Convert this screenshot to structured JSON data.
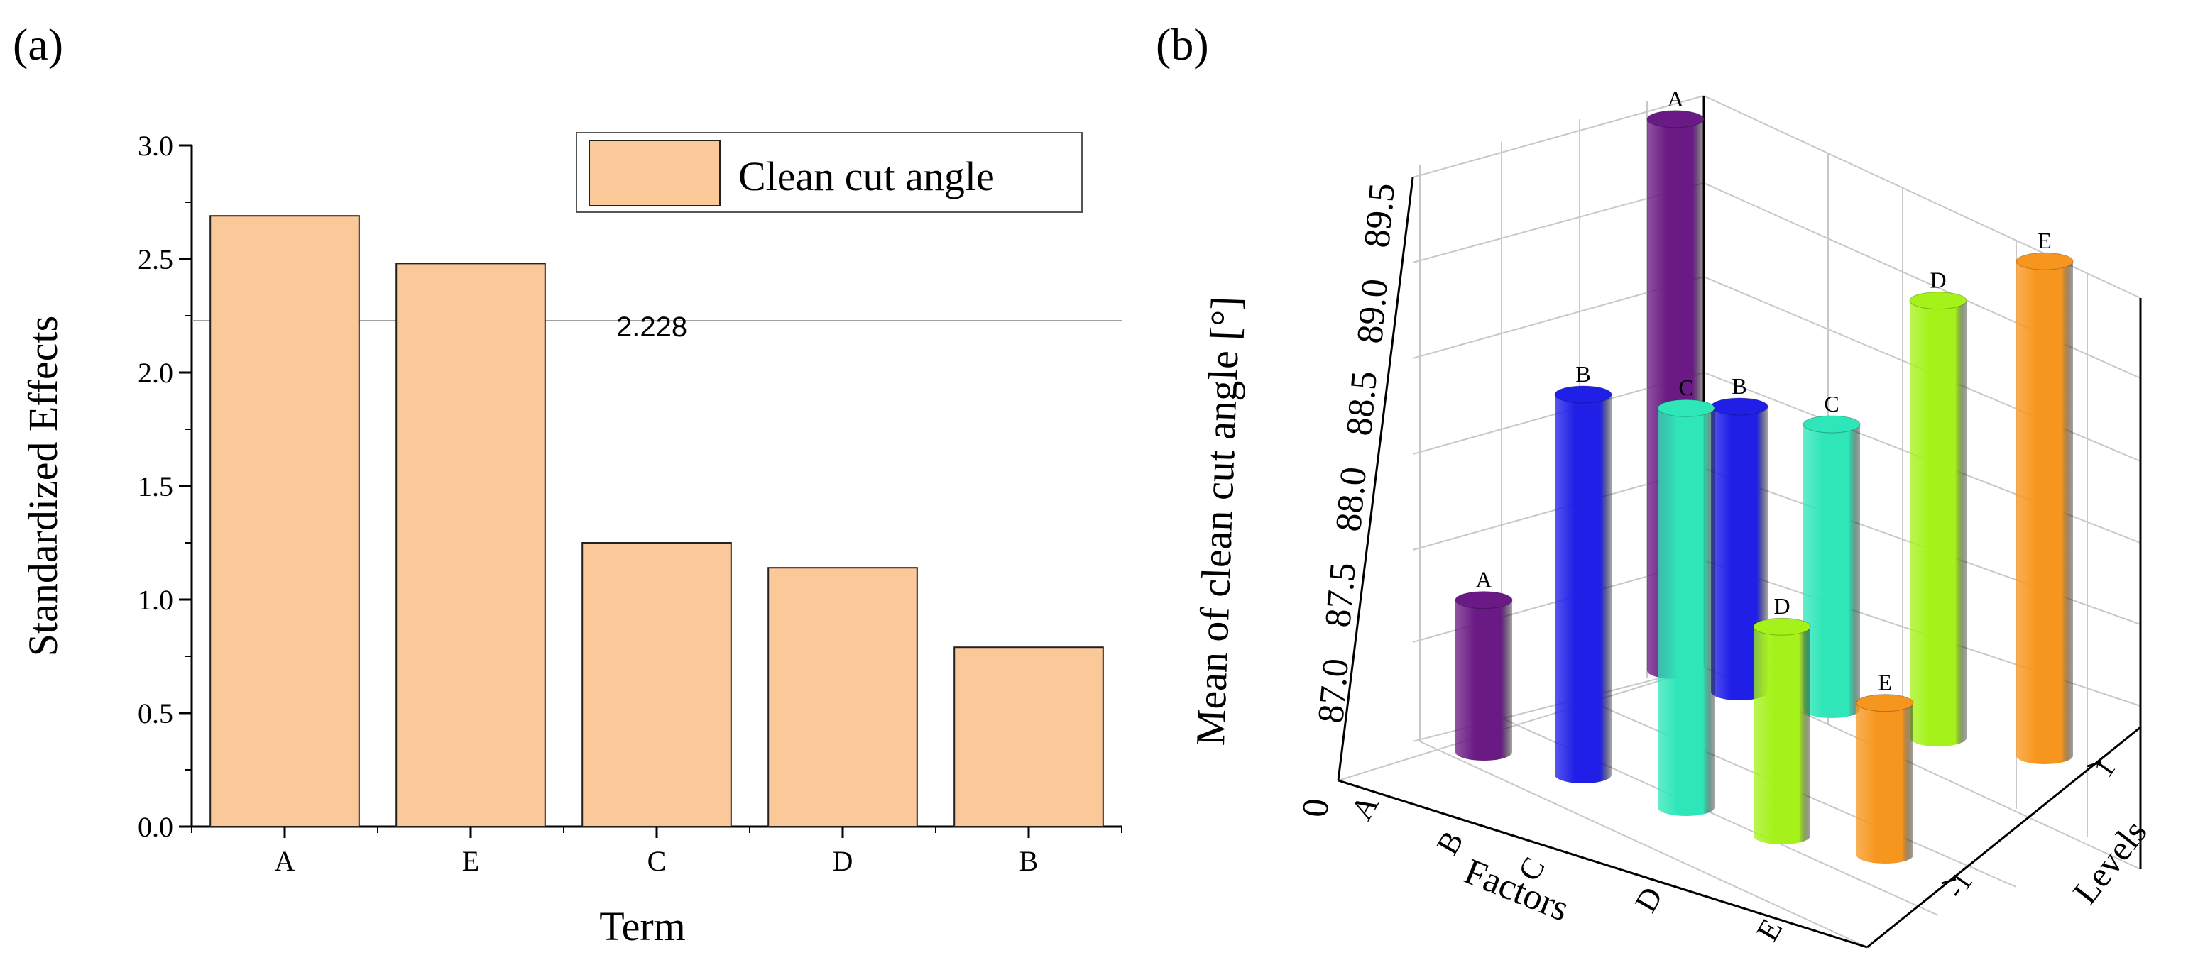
{
  "chart_data": [
    {
      "panel_label": "(a)",
      "type": "bar",
      "xlabel": "Term",
      "ylabel": "Standardized Effects",
      "ylim": [
        0,
        3.0
      ],
      "yticks": [
        "0.0",
        "0.5",
        "1.0",
        "1.5",
        "2.0",
        "2.5",
        "3.0"
      ],
      "categories": [
        "A",
        "E",
        "C",
        "D",
        "B"
      ],
      "values": [
        2.69,
        2.48,
        1.25,
        1.14,
        0.79
      ],
      "reference_line": {
        "value": 2.228,
        "label": "2.228"
      },
      "legend": {
        "label": "Clean cut angle",
        "placement": "top-right"
      },
      "colors": {
        "bar": "#fbc899",
        "bar_edge": "#222222",
        "reference": "#a0a0a0"
      }
    },
    {
      "panel_label": "(b)",
      "type": "bar3d",
      "zlabel": "Mean of clean cut angle [°]",
      "xlabel": "Factors",
      "ylabel": "Levels",
      "zlim": [
        86.5,
        89.5
      ],
      "zticks": [
        "0",
        "87.0",
        "87.5",
        "88.0",
        "88.5",
        "89.0",
        "89.5"
      ],
      "factors": [
        "A",
        "B",
        "C",
        "D",
        "E"
      ],
      "levels": [
        "-1",
        "1"
      ],
      "series": [
        {
          "name": "-1",
          "values": [
            87.3,
            88.5,
            88.6,
            87.6,
            87.3
          ]
        },
        {
          "name": "1",
          "values": [
            89.4,
            88.0,
            88.0,
            88.8,
            89.1
          ]
        }
      ],
      "colors": {
        "A": "#6a1a84",
        "B": "#1f1fe8",
        "C": "#2fe6b8",
        "D": "#a4f21a",
        "E": "#f7961e"
      }
    }
  ]
}
